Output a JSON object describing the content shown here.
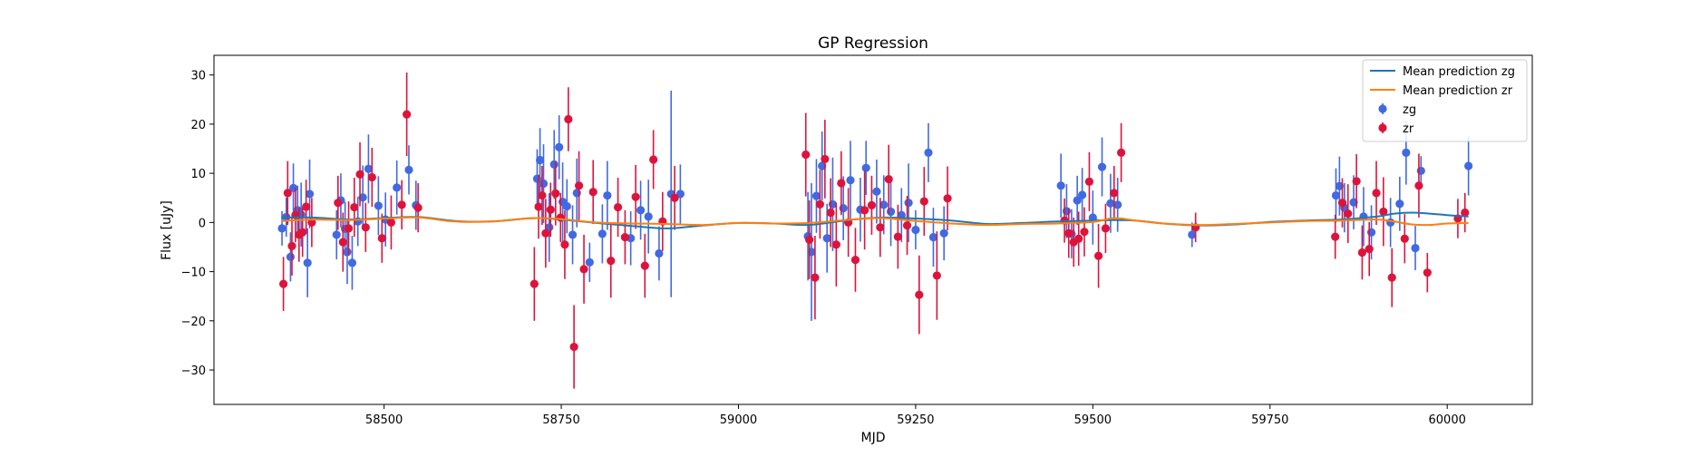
{
  "chart_data": {
    "type": "scatter",
    "title": "GP Regression",
    "xlabel": "MJD",
    "ylabel": "Flux [uJy]",
    "xlim": [
      58260,
      60120
    ],
    "ylim": [
      -37,
      34
    ],
    "x_ticks": [
      58500,
      58750,
      59000,
      59250,
      59500,
      59750,
      60000
    ],
    "y_ticks": [
      -30,
      -20,
      -10,
      0,
      10,
      20,
      30
    ],
    "legend_position": "top-right",
    "grid": false,
    "series": [
      {
        "name": "Mean prediction zg",
        "kind": "line",
        "color": "#1f77b4",
        "x": [
          58355,
          58400,
          58450,
          58500,
          58550,
          58600,
          58650,
          58700,
          58720,
          58750,
          58800,
          58850,
          58900,
          58950,
          59000,
          59050,
          59100,
          59150,
          59200,
          59250,
          59300,
          59350,
          59400,
          59450,
          59500,
          59530,
          59560,
          59600,
          59650,
          59700,
          59750,
          59800,
          59850,
          59900,
          59925,
          59950,
          59975,
          60000,
          60030
        ],
        "y": [
          1.0,
          1.0,
          0.6,
          0.9,
          1.1,
          0.3,
          0.2,
          0.8,
          0.9,
          0.6,
          -0.1,
          -0.7,
          -1.2,
          -0.6,
          -0.1,
          -0.2,
          -0.5,
          0.4,
          1.0,
          0.8,
          0.4,
          -0.3,
          -0.1,
          0.2,
          0.4,
          0.5,
          0.4,
          -0.2,
          -0.6,
          -0.4,
          0.1,
          0.4,
          0.6,
          1.2,
          1.8,
          2.0,
          1.8,
          1.5,
          1.2
        ]
      },
      {
        "name": "Mean prediction zr",
        "kind": "line",
        "color": "#ff7f0e",
        "x": [
          58355,
          58400,
          58450,
          58500,
          58550,
          58600,
          58650,
          58700,
          58720,
          58750,
          58800,
          58850,
          58900,
          58950,
          59000,
          59050,
          59100,
          59150,
          59200,
          59250,
          59300,
          59350,
          59400,
          59450,
          59500,
          59530,
          59560,
          59600,
          59650,
          59700,
          59750,
          59800,
          59850,
          59900,
          59925,
          59950,
          59975,
          60000,
          60030
        ],
        "y": [
          0.3,
          0.6,
          0.5,
          0.8,
          1.0,
          0.2,
          0.2,
          0.8,
          0.9,
          0.7,
          0.0,
          -0.2,
          -0.3,
          -0.5,
          -0.1,
          -0.2,
          -0.1,
          0.5,
          0.9,
          0.3,
          -0.2,
          -0.5,
          -0.3,
          -0.2,
          0.1,
          0.9,
          0.4,
          -0.2,
          -0.5,
          -0.3,
          0.0,
          0.3,
          0.4,
          0.6,
          0.2,
          -0.4,
          -0.5,
          -0.2,
          -0.1
        ]
      },
      {
        "name": "zg",
        "kind": "errorbar",
        "color": "#4169e1",
        "x": [
          58356,
          58362,
          58368,
          58372,
          58378,
          58383,
          58392,
          58395,
          58433,
          58439,
          58445,
          58448,
          58455,
          58463,
          58470,
          58478,
          58492,
          58502,
          58518,
          58535,
          58545,
          58716,
          58720,
          58725,
          58733,
          58740,
          58747,
          58752,
          58758,
          58766,
          58772,
          58790,
          58808,
          58815,
          58848,
          58862,
          58873,
          58888,
          58905,
          58918,
          59098,
          59103,
          59110,
          59118,
          59125,
          59133,
          59148,
          59158,
          59172,
          59180,
          59195,
          59205,
          59215,
          59230,
          59240,
          59250,
          59268,
          59275,
          59290,
          59455,
          59463,
          59470,
          59478,
          59485,
          59500,
          59513,
          59525,
          59535,
          59640,
          59843,
          59848,
          59855,
          59868,
          59882,
          59893,
          59920,
          59933,
          59942,
          59955,
          59963,
          60030
        ],
        "y": [
          -1.2,
          1.1,
          -7.0,
          7.0,
          2.5,
          1.6,
          -8.2,
          5.8,
          -2.5,
          4.5,
          -1.3,
          -6.0,
          -8.2,
          0.2,
          5.1,
          10.9,
          3.4,
          0.6,
          7.1,
          10.7,
          3.5,
          8.9,
          12.7,
          7.9,
          -1.0,
          11.8,
          15.3,
          4.2,
          3.3,
          -2.5,
          6.0,
          -8.1,
          -2.3,
          5.5,
          -3.2,
          2.5,
          1.2,
          -6.3,
          5.8,
          5.8,
          -2.8,
          -6.0,
          5.4,
          11.5,
          -3.2,
          3.7,
          2.9,
          8.6,
          2.6,
          11.1,
          6.3,
          3.6,
          2.2,
          1.5,
          4.0,
          -1.5,
          14.2,
          -3.0,
          -2.2,
          7.5,
          2.3,
          -2.3,
          4.5,
          5.6,
          1.0,
          11.3,
          3.9,
          3.6,
          -2.5,
          5.5,
          7.4,
          3.0,
          4.1,
          1.2,
          -2.0,
          0.0,
          3.8,
          14.2,
          -5.2,
          10.5,
          11.5
        ],
        "err": [
          3.5,
          4.0,
          5.0,
          5.0,
          5.0,
          6.5,
          7.0,
          7.0,
          5.0,
          5.5,
          5.5,
          6.5,
          5.5,
          5.0,
          6.5,
          7.0,
          6.0,
          5.5,
          5.5,
          5.0,
          5.0,
          6.0,
          6.5,
          8.0,
          7.0,
          7.0,
          6.5,
          8.0,
          5.5,
          6.0,
          7.0,
          4.0,
          6.0,
          7.0,
          5.5,
          6.0,
          7.5,
          5.5,
          21.0,
          6.0,
          9.0,
          14.0,
          7.5,
          7.0,
          7.0,
          9.5,
          6.5,
          8.0,
          6.5,
          5.5,
          6.5,
          6.0,
          7.0,
          5.5,
          8.0,
          4.0,
          6.0,
          6.0,
          5.5,
          6.5,
          5.5,
          5.0,
          5.0,
          5.5,
          5.5,
          6.0,
          6.0,
          5.5,
          2.5,
          5.5,
          6.0,
          5.0,
          5.5,
          6.0,
          5.5,
          5.0,
          5.5,
          6.5,
          4.5,
          3.0,
          6.0
        ]
      },
      {
        "name": "zr",
        "kind": "errorbar",
        "color": "#dc143c",
        "x": [
          58358,
          58364,
          58370,
          58375,
          58380,
          58385,
          58390,
          58398,
          58435,
          58442,
          58450,
          58458,
          58466,
          58474,
          58483,
          58497,
          58510,
          58525,
          58532,
          58548,
          58712,
          58718,
          58723,
          58728,
          58735,
          58742,
          58749,
          58755,
          58760,
          58768,
          58775,
          58782,
          58795,
          58820,
          58830,
          58840,
          58855,
          58868,
          58880,
          58893,
          58910,
          59095,
          59100,
          59108,
          59115,
          59122,
          59130,
          59138,
          59145,
          59155,
          59165,
          59178,
          59188,
          59200,
          59212,
          59225,
          59238,
          59255,
          59262,
          59280,
          59295,
          59460,
          59466,
          59473,
          59480,
          59488,
          59495,
          59508,
          59518,
          59530,
          59540,
          59645,
          59842,
          59852,
          59860,
          59872,
          59880,
          59890,
          59900,
          59910,
          59922,
          59940,
          59960,
          59972,
          60015,
          60025
        ],
        "y": [
          -12.5,
          6.0,
          -4.8,
          1.5,
          -2.5,
          -2.0,
          3.2,
          0.0,
          4.0,
          -4.0,
          -1.2,
          3.1,
          9.8,
          -1.0,
          9.2,
          -3.2,
          0.0,
          3.6,
          22.0,
          3.0,
          -12.5,
          3.2,
          5.5,
          -2.2,
          2.6,
          5.9,
          1.0,
          -4.5,
          21.0,
          -25.3,
          7.5,
          -9.5,
          6.2,
          -7.8,
          3.1,
          -3.0,
          5.2,
          -8.8,
          12.8,
          0.2,
          5.0,
          13.8,
          -3.5,
          -11.2,
          3.7,
          12.9,
          2.0,
          -4.5,
          8.0,
          0.0,
          -7.6,
          2.5,
          3.5,
          -1.0,
          8.8,
          -2.9,
          -0.6,
          -14.7,
          4.3,
          -10.8,
          4.9,
          0.4,
          -2.2,
          -4.0,
          -3.3,
          -1.9,
          8.3,
          -6.8,
          -1.2,
          6.0,
          14.2,
          -1.0,
          -2.9,
          4.0,
          1.8,
          8.4,
          -6.1,
          -5.4,
          6.0,
          2.2,
          -11.2,
          -3.3,
          7.5,
          -10.2,
          0.8,
          2.0
        ],
        "err": [
          5.5,
          6.5,
          6.0,
          5.5,
          5.5,
          5.0,
          5.5,
          5.0,
          5.5,
          6.0,
          5.5,
          6.0,
          6.5,
          5.0,
          6.0,
          5.0,
          5.5,
          5.0,
          8.5,
          5.0,
          7.5,
          6.5,
          6.0,
          7.0,
          5.5,
          6.5,
          5.0,
          7.0,
          6.5,
          8.5,
          7.0,
          7.0,
          6.5,
          7.5,
          6.0,
          5.5,
          6.5,
          6.5,
          6.0,
          6.0,
          6.5,
          8.5,
          8.0,
          8.5,
          7.0,
          8.0,
          7.0,
          8.5,
          6.5,
          7.0,
          6.5,
          8.0,
          6.0,
          6.0,
          7.0,
          6.5,
          6.0,
          8.0,
          7.0,
          9.0,
          6.5,
          4.5,
          5.0,
          5.0,
          5.5,
          5.0,
          6.0,
          6.5,
          5.0,
          5.5,
          6.0,
          3.0,
          4.5,
          5.0,
          6.0,
          5.5,
          5.5,
          5.5,
          6.5,
          7.0,
          6.0,
          5.0,
          6.5,
          4.0,
          4.0,
          4.0
        ]
      }
    ]
  }
}
